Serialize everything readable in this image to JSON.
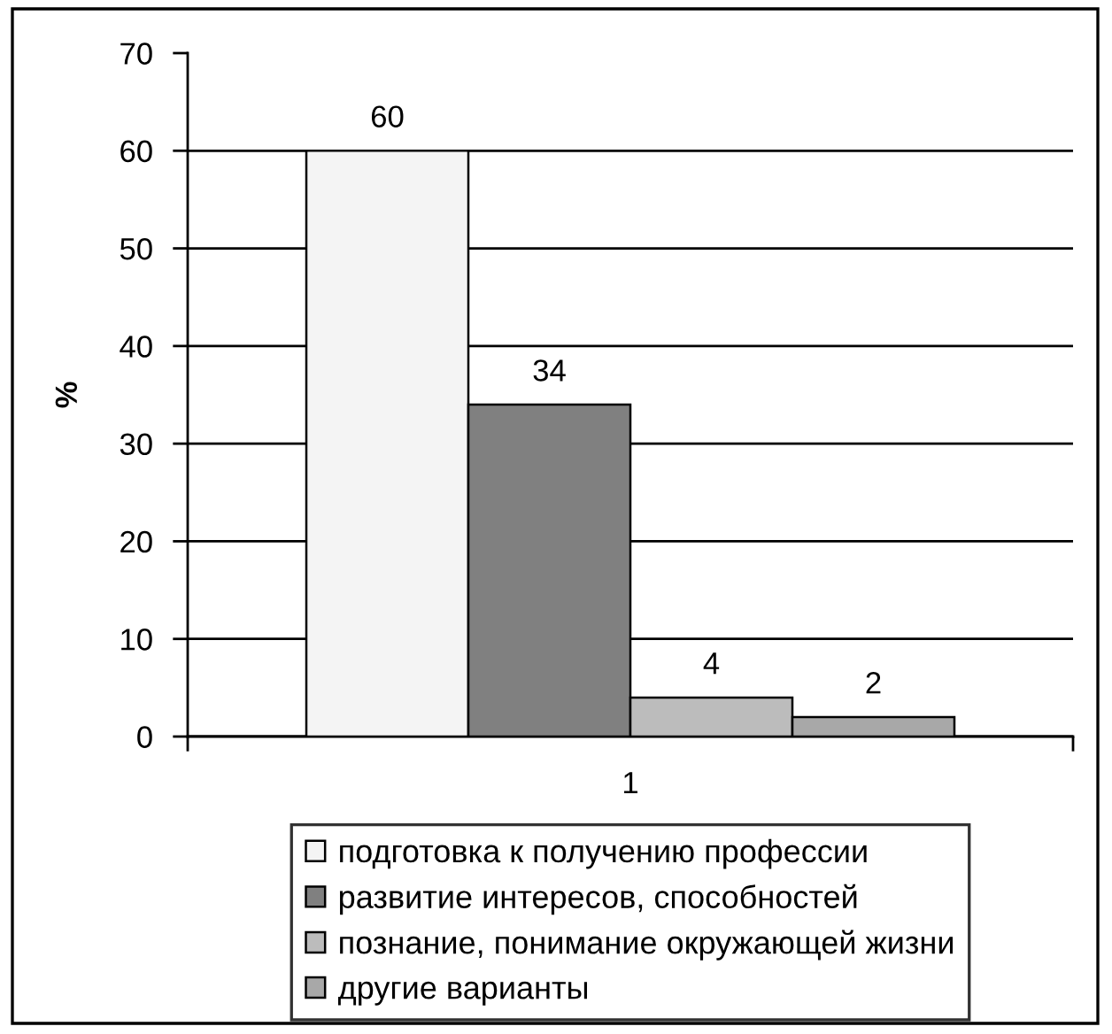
{
  "chart_data": {
    "type": "bar",
    "categories": [
      "1"
    ],
    "ylabel": "%",
    "series": [
      {
        "name": "подготовка к получению профессии",
        "color": "#f4f4f4",
        "values": [
          60
        ]
      },
      {
        "name": "развитие интересов, способностей",
        "color": "#808080",
        "values": [
          34
        ]
      },
      {
        "name": "познание, понимание окружающей жизни",
        "color": "#bcbcbc",
        "values": [
          4
        ]
      },
      {
        "name": "другие варианты",
        "color": "#a8a8a8",
        "values": [
          2
        ]
      }
    ],
    "ylim": [
      0,
      70
    ],
    "yticks": [
      0,
      10,
      20,
      30,
      40,
      50,
      60,
      70
    ],
    "grid": "y",
    "legend": "bottom",
    "data_labels": true
  }
}
